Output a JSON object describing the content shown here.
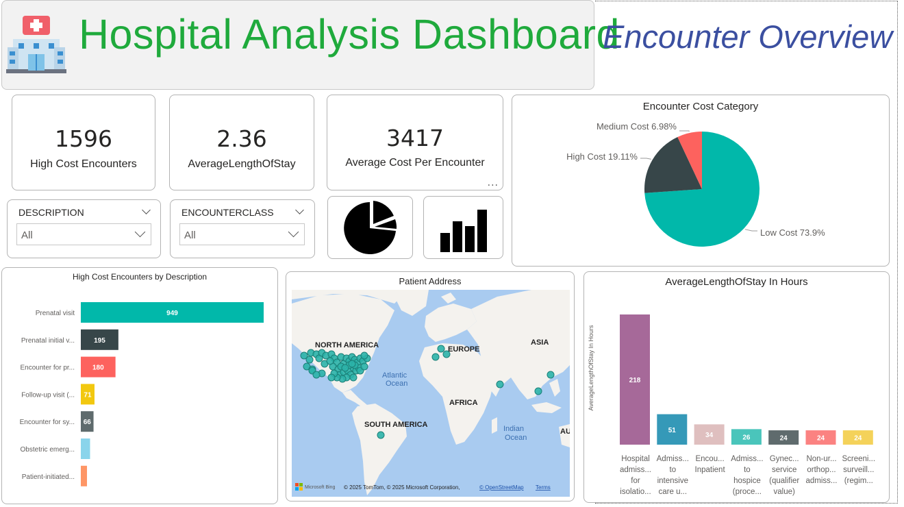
{
  "header": {
    "title": "Hospital Analysis Dashboard",
    "subtitle": "Encounter Overview"
  },
  "icons": {
    "hospital": "hospital-icon",
    "pie_nav": "pie-chart-icon",
    "bar_nav": "bar-chart-icon",
    "more": "more-options-icon"
  },
  "kpis": [
    {
      "value": "1596",
      "label": "High Cost Encounters"
    },
    {
      "value": "2.36",
      "label": "AverageLengthOfStay"
    },
    {
      "value": "3417",
      "label": "Average Cost Per Encounter"
    }
  ],
  "more_options": "...",
  "slicers": [
    {
      "label": "DESCRIPTION",
      "value": "All"
    },
    {
      "label": "ENCOUNTERCLASS",
      "value": "All"
    }
  ],
  "map": {
    "title": "Patient Address",
    "labels": {
      "north_america": "NORTH AMERICA",
      "europe": "EUROPE",
      "asia": "ASIA",
      "africa": "AFRICA",
      "south_america": "SOUTH AMERICA",
      "atlantic": "Atlantic",
      "atlantic2": "Ocean",
      "indian": "Indian",
      "indian2": "Ocean",
      "au": "AU"
    },
    "bing": "Microsoft Bing",
    "attribution": "© 2025 TomTom, © 2025 Microsoft Corporation,",
    "osm": "© OpenStreetMap",
    "terms": "Terms"
  },
  "colors": {
    "teal": "#01b8aa",
    "dark": "#374649",
    "red": "#fd625e",
    "yellow": "#f2c80f",
    "gray": "#5f6b6d",
    "lightblue": "#8ad4eb",
    "salmon": "#fe9666",
    "green": "#1faa3c",
    "navy": "#3b4fa0"
  },
  "chart_data": [
    {
      "type": "pie",
      "title": "Encounter Cost Category",
      "slices": [
        {
          "label": "Low Cost",
          "value": 73.9,
          "display": "Low Cost 73.9%",
          "color": "#01b8aa"
        },
        {
          "label": "High Cost",
          "value": 19.11,
          "display": "High Cost 19.11%",
          "color": "#374649"
        },
        {
          "label": "Medium Cost",
          "value": 6.98,
          "display": "Medium Cost 6.98%",
          "color": "#fd625e"
        }
      ]
    },
    {
      "type": "bar",
      "orientation": "horizontal",
      "title": "High Cost Encounters by Description",
      "categories": [
        "Prenatal visit",
        "Prenatal initial v...",
        "Encounter for pr...",
        "Follow-up visit (...",
        "Encounter for sy...",
        "Obstetric emerg...",
        "Patient-initiated..."
      ],
      "values": [
        949,
        195,
        180,
        71,
        66,
        null,
        null
      ],
      "colors": [
        "#01b8aa",
        "#374649",
        "#fd625e",
        "#f2c80f",
        "#5f6b6d",
        "#8ad4eb",
        "#fe9666"
      ],
      "approx_values": [
        949,
        195,
        180,
        71,
        66,
        48,
        32
      ]
    },
    {
      "type": "bar",
      "orientation": "vertical",
      "title": "AverageLengthOfStay In Hours",
      "ylabel": "AverageLengthOfStay In Hours",
      "categories": [
        [
          "Hospital",
          "admiss...",
          "for",
          "isolatio..."
        ],
        [
          "Admiss...",
          "to",
          "intensive",
          "care u..."
        ],
        [
          "Encou...",
          "Inpatient"
        ],
        [
          "Admiss...",
          "to",
          "hospice",
          "(proce..."
        ],
        [
          "Gynec...",
          "service",
          "(qualifier",
          "value)"
        ],
        [
          "Non-ur...",
          "orthop...",
          "admiss..."
        ],
        [
          "Screeni...",
          "surveill...",
          "(regim..."
        ]
      ],
      "values": [
        218,
        51,
        34,
        26,
        24,
        24,
        24
      ],
      "labels": [
        "218",
        "51",
        "34",
        "26",
        "24",
        "24",
        "24"
      ],
      "colors": [
        "#a66999",
        "#3599b8",
        "#dfbfbf",
        "#4ac5bb",
        "#5f6b6d",
        "#fb8281",
        "#f4d25a"
      ]
    }
  ]
}
